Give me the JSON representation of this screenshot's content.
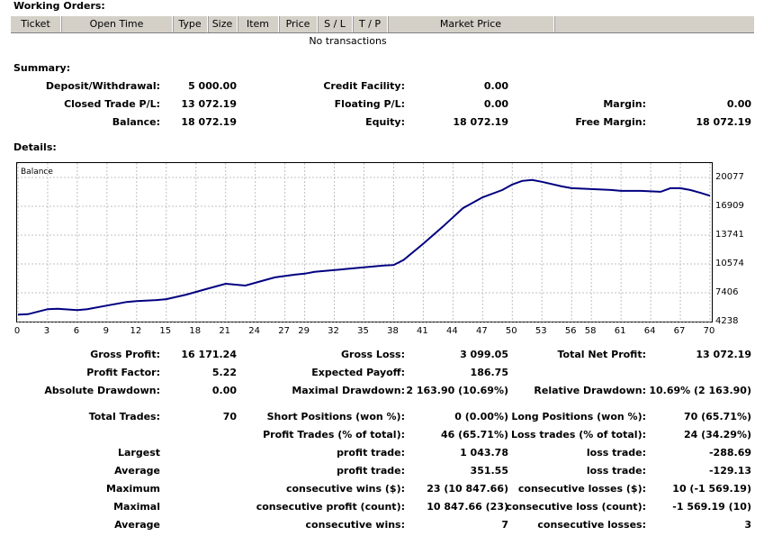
{
  "working_orders": {
    "title": "Working Orders:",
    "columns": [
      "Ticket",
      "Open Time",
      "Type",
      "Size",
      "Item",
      "Price",
      "S / L",
      "T / P",
      "Market Price",
      ""
    ],
    "empty_message": "No transactions"
  },
  "summary": {
    "title": "Summary:",
    "deposit_label": "Deposit/Withdrawal:",
    "deposit_value": "5 000.00",
    "closed_label": "Closed Trade P/L:",
    "closed_value": "13 072.19",
    "balance_label": "Balance:",
    "balance_value": "18 072.19",
    "credit_label": "Credit Facility:",
    "credit_value": "0.00",
    "floating_label": "Floating P/L:",
    "floating_value": "0.00",
    "equity_label": "Equity:",
    "equity_value": "18 072.19",
    "margin_label": "Margin:",
    "margin_value": "0.00",
    "free_margin_label": "Free Margin:",
    "free_margin_value": "18 072.19"
  },
  "details": {
    "title": "Details:",
    "rows": [
      [
        "Gross Profit:",
        "16 171.24",
        "Gross Loss:",
        "3 099.05",
        "Total Net Profit:",
        "13 072.19"
      ],
      [
        "Profit Factor:",
        "5.22",
        "Expected Payoff:",
        "186.75",
        "",
        ""
      ],
      [
        "Absolute Drawdown:",
        "0.00",
        "Maximal Drawdown:",
        "2 163.90 (10.69%)",
        "Relative Drawdown:",
        "10.69% (2 163.90)"
      ],
      [
        "Total Trades:",
        "70",
        "Short Positions (won %):",
        "0 (0.00%)",
        "Long Positions (won %):",
        "70 (65.71%)"
      ],
      [
        "",
        "",
        "Profit Trades (% of total):",
        "46 (65.71%)",
        "Loss trades (% of total):",
        "24 (34.29%)"
      ],
      [
        "Largest",
        "",
        "profit trade:",
        "1 043.78",
        "loss trade:",
        "-288.69"
      ],
      [
        "Average",
        "",
        "profit trade:",
        "351.55",
        "loss trade:",
        "-129.13"
      ],
      [
        "Maximum",
        "",
        "consecutive wins ($):",
        "23 (10 847.66)",
        "consecutive losses ($):",
        "10 (-1 569.19)"
      ],
      [
        "Maximal",
        "",
        "consecutive profit (count):",
        "10 847.66 (23)",
        "consecutive loss (count):",
        "-1 569.19 (10)"
      ],
      [
        "Average",
        "",
        "consecutive wins:",
        "7",
        "consecutive losses:",
        "3"
      ]
    ]
  },
  "colors": {
    "line": "#000080",
    "grid": "#c0c0c0",
    "header_bg": "#d4d0c8"
  },
  "chart_data": {
    "type": "line",
    "series_label": "Balance",
    "x_ticks": [
      "0",
      "3",
      "6",
      "9",
      "12",
      "15",
      "18",
      "21",
      "24",
      "27",
      "29",
      "32",
      "35",
      "38",
      "41",
      "44",
      "47",
      "50",
      "53",
      "56",
      "58",
      "61",
      "64",
      "67",
      "70"
    ],
    "y_ticks": [
      "20077",
      "16909",
      "13741",
      "10574",
      "7406",
      "4238"
    ],
    "ylim": [
      4238,
      20077
    ],
    "xlim": [
      0,
      70
    ],
    "x": [
      0,
      1,
      3,
      4,
      6,
      7,
      9,
      11,
      12,
      14,
      15,
      17,
      19,
      21,
      22,
      23,
      25,
      26,
      28,
      29,
      30,
      31,
      33,
      35,
      36,
      37,
      38,
      39,
      41,
      43,
      45,
      47,
      49,
      50,
      51,
      52,
      53,
      55,
      56,
      58,
      60,
      61,
      63,
      65,
      66,
      67,
      68,
      69,
      70
    ],
    "y": [
      5000,
      5050,
      5600,
      5650,
      5500,
      5600,
      6000,
      6400,
      6500,
      6600,
      6700,
      7200,
      7800,
      8400,
      8300,
      8200,
      8800,
      9100,
      9400,
      9500,
      9700,
      9800,
      10000,
      10200,
      10300,
      10400,
      10450,
      11000,
      12800,
      14700,
      16700,
      17900,
      18700,
      19300,
      19700,
      19800,
      19600,
      19100,
      18900,
      18800,
      18700,
      18600,
      18600,
      18500,
      18900,
      18900,
      18700,
      18400,
      18072.19
    ]
  }
}
